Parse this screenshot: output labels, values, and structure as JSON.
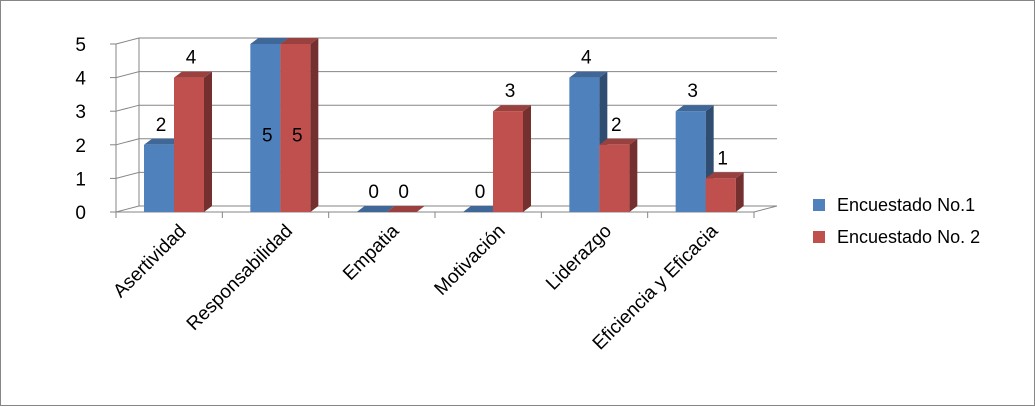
{
  "chart_data": {
    "type": "bar",
    "categories": [
      "Asertividad",
      "Responsabilidad",
      "Empatia",
      "Motivación",
      "Liderazgo",
      "Eficiencia y Eficacia"
    ],
    "series": [
      {
        "name": "Encuestado No.1",
        "values": [
          2,
          5,
          0,
          0,
          4,
          3
        ],
        "data_labels": [
          "2",
          "5",
          "0",
          "0",
          "4",
          "3"
        ],
        "color": "#4F81BD"
      },
      {
        "name": "Encuestado No. 2",
        "values": [
          4,
          5,
          0,
          3,
          2,
          1
        ],
        "data_labels": [
          "4",
          "5",
          "0",
          "3",
          "2",
          "1"
        ],
        "color": "#C0504D"
      }
    ],
    "y_ticks": [
      "0",
      "1",
      "2",
      "3",
      "4",
      "5"
    ],
    "ylim": [
      0,
      5
    ],
    "grid": true,
    "three_d": true,
    "legend_position": "right",
    "title": "",
    "xlabel": "",
    "ylabel": ""
  }
}
